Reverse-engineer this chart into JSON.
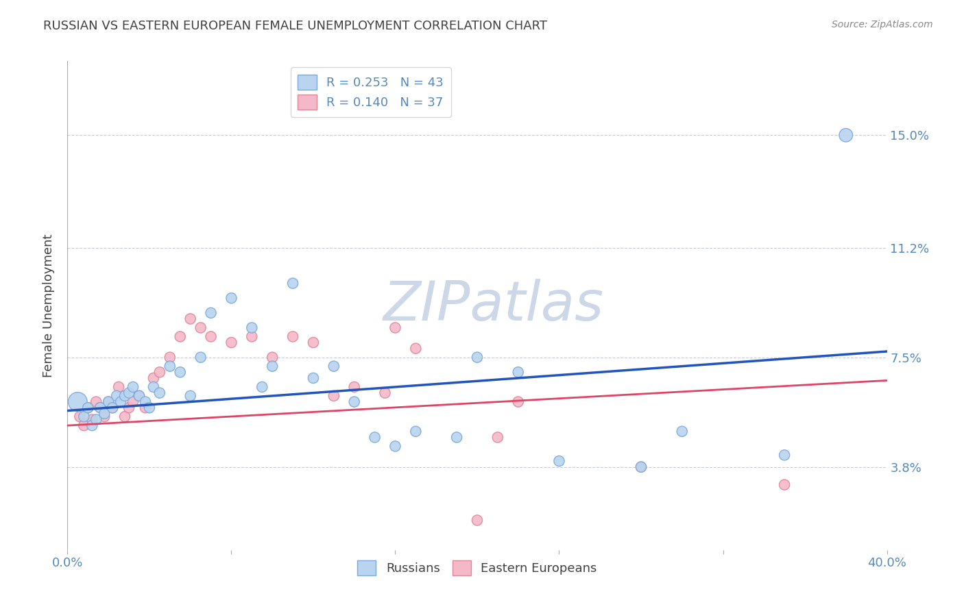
{
  "title": "RUSSIAN VS EASTERN EUROPEAN FEMALE UNEMPLOYMENT CORRELATION CHART",
  "source": "Source: ZipAtlas.com",
  "ylabel": "Female Unemployment",
  "xlim": [
    0.0,
    0.4
  ],
  "ylim": [
    0.01,
    0.175
  ],
  "yticks": [
    0.038,
    0.075,
    0.112,
    0.15
  ],
  "ytick_labels": [
    "3.8%",
    "7.5%",
    "11.2%",
    "15.0%"
  ],
  "xtick_labels_ends": [
    "0.0%",
    "40.0%"
  ],
  "legend_r_labels": [
    "R = 0.253",
    "N = 43",
    "R = 0.140",
    "N = 37"
  ],
  "legend_labels": [
    "Russians",
    "Eastern Europeans"
  ],
  "watermark": "ZIPatlas",
  "watermark_color": "#ccd8e8",
  "background_color": "#ffffff",
  "grid_color": "#c8ccd8",
  "title_color": "#404040",
  "source_color": "#888888",
  "axis_label_color": "#404040",
  "tick_label_color": "#5588bb",
  "russians_color": "#b8d4ee",
  "russians_edge_color": "#7aaadd",
  "eastern_color": "#f4b8c8",
  "eastern_edge_color": "#dd8899",
  "blue_line_color": "#2255bb",
  "pink_line_color": "#dd4466",
  "russians_x": [
    0.005,
    0.008,
    0.01,
    0.012,
    0.014,
    0.016,
    0.018,
    0.02,
    0.022,
    0.024,
    0.026,
    0.028,
    0.03,
    0.032,
    0.035,
    0.038,
    0.04,
    0.042,
    0.045,
    0.05,
    0.055,
    0.06,
    0.065,
    0.07,
    0.08,
    0.09,
    0.095,
    0.1,
    0.11,
    0.12,
    0.13,
    0.14,
    0.15,
    0.16,
    0.17,
    0.19,
    0.2,
    0.22,
    0.24,
    0.28,
    0.3,
    0.35,
    0.38
  ],
  "russians_y": [
    0.06,
    0.055,
    0.058,
    0.052,
    0.054,
    0.058,
    0.056,
    0.06,
    0.058,
    0.062,
    0.06,
    0.062,
    0.063,
    0.065,
    0.062,
    0.06,
    0.058,
    0.065,
    0.063,
    0.072,
    0.07,
    0.062,
    0.075,
    0.09,
    0.095,
    0.085,
    0.065,
    0.072,
    0.1,
    0.068,
    0.072,
    0.06,
    0.048,
    0.045,
    0.05,
    0.048,
    0.075,
    0.07,
    0.04,
    0.038,
    0.05,
    0.042,
    0.15
  ],
  "russians_size": [
    400,
    120,
    120,
    120,
    120,
    120,
    120,
    120,
    120,
    120,
    120,
    120,
    120,
    120,
    120,
    120,
    120,
    120,
    120,
    120,
    120,
    120,
    120,
    120,
    120,
    120,
    120,
    120,
    120,
    120,
    120,
    120,
    120,
    120,
    120,
    120,
    120,
    120,
    120,
    120,
    120,
    120,
    200
  ],
  "eastern_x": [
    0.006,
    0.008,
    0.01,
    0.012,
    0.014,
    0.016,
    0.018,
    0.02,
    0.022,
    0.025,
    0.028,
    0.03,
    0.032,
    0.035,
    0.038,
    0.042,
    0.045,
    0.05,
    0.055,
    0.06,
    0.065,
    0.07,
    0.08,
    0.09,
    0.1,
    0.11,
    0.12,
    0.13,
    0.14,
    0.155,
    0.16,
    0.17,
    0.2,
    0.21,
    0.22,
    0.28,
    0.35
  ],
  "eastern_y": [
    0.055,
    0.052,
    0.058,
    0.054,
    0.06,
    0.058,
    0.055,
    0.06,
    0.058,
    0.065,
    0.055,
    0.058,
    0.06,
    0.062,
    0.058,
    0.068,
    0.07,
    0.075,
    0.082,
    0.088,
    0.085,
    0.082,
    0.08,
    0.082,
    0.075,
    0.082,
    0.08,
    0.062,
    0.065,
    0.063,
    0.085,
    0.078,
    0.02,
    0.048,
    0.06,
    0.038,
    0.032
  ],
  "eastern_size": [
    120,
    120,
    120,
    120,
    120,
    120,
    120,
    120,
    120,
    120,
    120,
    120,
    120,
    120,
    120,
    120,
    120,
    120,
    120,
    120,
    120,
    120,
    120,
    120,
    120,
    120,
    120,
    120,
    120,
    120,
    120,
    120,
    120,
    120,
    120,
    120,
    120
  ],
  "blue_line_x": [
    0.0,
    0.4
  ],
  "blue_line_y_intercept": 0.057,
  "blue_line_slope": 0.05,
  "pink_line_y_intercept": 0.052,
  "pink_line_slope": 0.038
}
